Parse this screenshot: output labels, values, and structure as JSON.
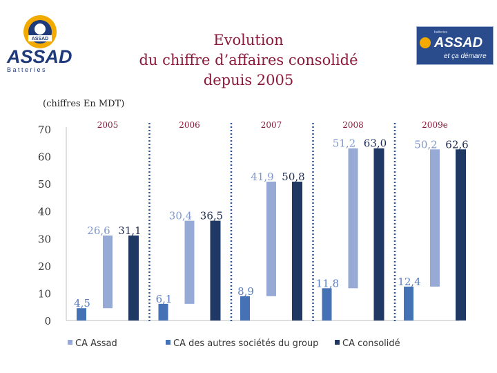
{
  "title": {
    "line1": "Evolution",
    "line2": "du chiffre d’affaires consolidé",
    "line3": "depuis 2005"
  },
  "units_note": "(chiffres En MDT)",
  "logo_left": {
    "brand": "ASSAD",
    "tagline": "B a t t e r i e s",
    "badge": "ASSAD"
  },
  "logo_right": {
    "brand": "ASSAD",
    "slogan": "et ça démarre",
    "small": "batteries"
  },
  "colors": {
    "assad": "#97aad6",
    "autres": "#4472b4",
    "consolide": "#1f3864",
    "title": "#8b1a3a",
    "year": "#8b1a3a"
  },
  "chart_data": {
    "type": "bar",
    "title": "Evolution du chiffre d’affaires consolidé depuis 2005",
    "ylabel": "",
    "xlabel": "",
    "ylim": [
      0,
      70
    ],
    "yticks": [
      0,
      10,
      20,
      30,
      40,
      50,
      60,
      70
    ],
    "grid": false,
    "legend_position": "bottom",
    "categories": [
      "2005",
      "2006",
      "2007",
      "2008",
      "2009e"
    ],
    "category_labels": [
      "2005",
      "2006",
      "2007",
      "2008",
      "2009e"
    ],
    "series": [
      {
        "name": "CA Assad",
        "values": [
          26.6,
          30.4,
          41.9,
          51.2,
          50.2
        ],
        "labels": [
          "26,6",
          "30,4",
          "41,9",
          "51,2",
          "50,2"
        ]
      },
      {
        "name": "CA des autres sociétés du group",
        "values": [
          4.5,
          6.1,
          8.9,
          11.8,
          12.4
        ],
        "labels": [
          "4,5",
          "6,1",
          "8,9",
          "11,8",
          "12,4"
        ]
      },
      {
        "name": "CA consolidé",
        "values": [
          31.1,
          36.5,
          50.8,
          63.0,
          62.6
        ],
        "labels": [
          "31,1",
          "36,5",
          "50,8",
          "63,0",
          "62,6"
        ]
      }
    ]
  }
}
